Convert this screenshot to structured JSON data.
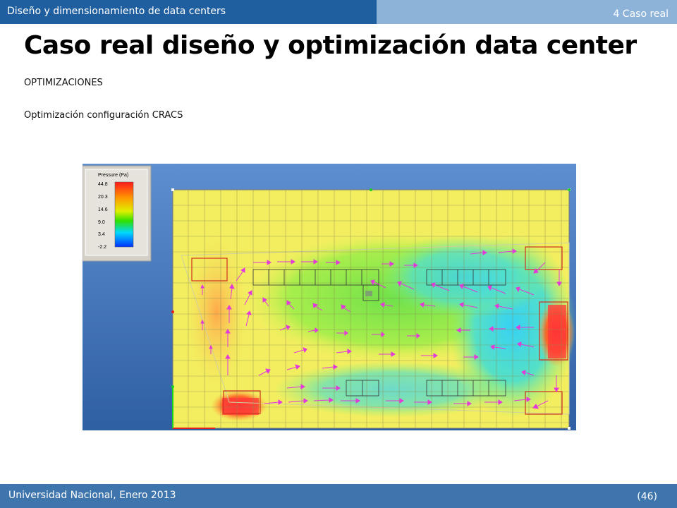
{
  "header": {
    "course_title": "Diseño y dimensionamiento de data centers",
    "section": "4 Caso real"
  },
  "slide": {
    "title": "Caso real diseño y optimización data center",
    "heading": "OPTIMIZACIONES",
    "subheading": "Optimización configuración CRACS"
  },
  "legend": {
    "title": "Pressure (Pa)",
    "values": [
      "44.8",
      "20.3",
      "14.6",
      "9.0",
      "3.4",
      "-2.2"
    ]
  },
  "footer": {
    "institution": "Universidad Nacional, Enero 2013",
    "page": "(46)"
  },
  "colors": {
    "header_dark": "#1f5fa0",
    "header_light": "#8eb3d9",
    "footer": "#3f75ad",
    "vector_arrows": "#e23ad8"
  }
}
